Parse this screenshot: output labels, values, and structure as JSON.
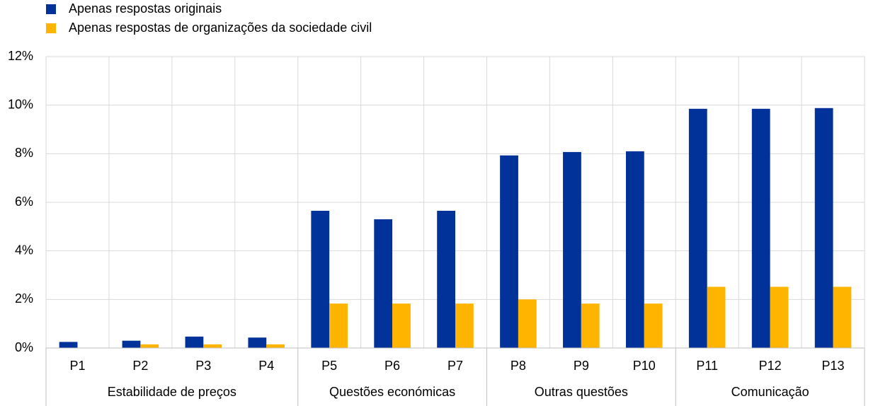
{
  "chart_data": {
    "type": "bar",
    "categories": [
      "P1",
      "P2",
      "P3",
      "P4",
      "P5",
      "P6",
      "P7",
      "P8",
      "P9",
      "P10",
      "P11",
      "P12",
      "P13"
    ],
    "groups": [
      {
        "label": "Estabilidade de preços",
        "span": 4
      },
      {
        "label": "Questões económicas",
        "span": 3
      },
      {
        "label": "Outras questões",
        "span": 3
      },
      {
        "label": "Comunicação",
        "span": 3
      }
    ],
    "series": [
      {
        "name": "Apenas respostas originais",
        "color": "#003299",
        "values": [
          0.25,
          0.3,
          0.47,
          0.43,
          5.65,
          5.3,
          5.65,
          7.93,
          8.07,
          8.1,
          9.85,
          9.85,
          9.88
        ]
      },
      {
        "name": "Apenas respostas de organizações da sociedade civil",
        "color": "#ffb400",
        "values": [
          0,
          0.15,
          0.15,
          0.15,
          1.83,
          1.83,
          1.83,
          2.0,
          1.83,
          1.83,
          2.52,
          2.52,
          2.52
        ]
      }
    ],
    "ylim": [
      0,
      12
    ],
    "yticks": [
      {
        "value": 0,
        "label": "0%"
      },
      {
        "value": 2,
        "label": "2%"
      },
      {
        "value": 4,
        "label": "4%"
      },
      {
        "value": 6,
        "label": "6%"
      },
      {
        "value": 8,
        "label": "8%"
      },
      {
        "value": 10,
        "label": "10%"
      },
      {
        "value": 12,
        "label": "12%"
      }
    ],
    "grid": true
  }
}
